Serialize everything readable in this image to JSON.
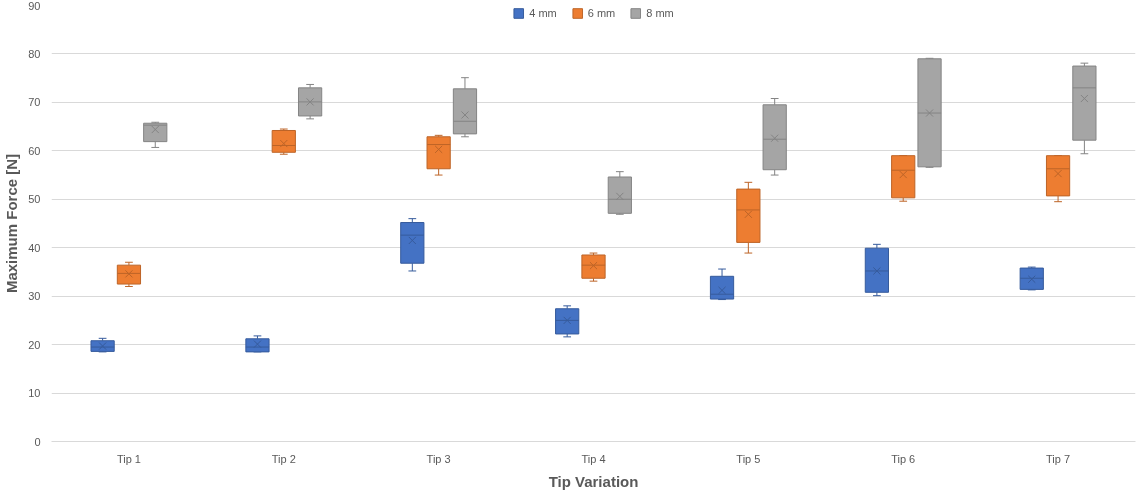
{
  "chart_data": {
    "type": "box",
    "xlabel": "Tip Variation",
    "ylabel": "Maximum Force [N]",
    "categories": [
      "Tip 1",
      "Tip 2",
      "Tip 3",
      "Tip 4",
      "Tip 5",
      "Tip 6",
      "Tip 7"
    ],
    "ylim": [
      0,
      90
    ],
    "yticks": [
      0,
      10,
      20,
      30,
      40,
      50,
      60,
      70,
      80,
      90
    ],
    "grid": "y",
    "legend": "top",
    "series": [
      {
        "name": "4 mm",
        "color": "#4472c4",
        "boxes": [
          {
            "low": 18.5,
            "q1": 18.6,
            "median": 19.5,
            "q3": 20.8,
            "high": 21.3,
            "mean": 19.7
          },
          {
            "low": 18.5,
            "q1": 18.5,
            "median": 19.5,
            "q3": 21.2,
            "high": 21.8,
            "mean": 20.1
          },
          {
            "low": 35.2,
            "q1": 36.8,
            "median": 42.6,
            "q3": 45.2,
            "high": 46.0,
            "mean": 41.5
          },
          {
            "low": 21.6,
            "q1": 22.2,
            "median": 25.0,
            "q3": 27.4,
            "high": 28.0,
            "mean": 25.0
          },
          {
            "low": 29.3,
            "q1": 29.4,
            "median": 30.4,
            "q3": 34.1,
            "high": 35.6,
            "mean": 31.2
          },
          {
            "low": 30.1,
            "q1": 30.8,
            "median": 35.2,
            "q3": 39.9,
            "high": 40.7,
            "mean": 35.2
          },
          {
            "low": 31.3,
            "q1": 31.4,
            "median": 33.7,
            "q3": 35.8,
            "high": 36.0,
            "mean": 33.5
          }
        ]
      },
      {
        "name": "6 mm",
        "color": "#ed7d31",
        "boxes": [
          {
            "low": 32.0,
            "q1": 32.5,
            "median": 34.7,
            "q3": 36.4,
            "high": 37.0,
            "mean": 34.6
          },
          {
            "low": 59.3,
            "q1": 59.7,
            "median": 61.1,
            "q3": 64.2,
            "high": 64.5,
            "mean": 61.5
          },
          {
            "low": 55.0,
            "q1": 56.3,
            "median": 61.3,
            "q3": 62.9,
            "high": 63.2,
            "mean": 60.3
          },
          {
            "low": 33.1,
            "q1": 33.7,
            "median": 36.4,
            "q3": 38.5,
            "high": 38.9,
            "mean": 36.3
          },
          {
            "low": 38.9,
            "q1": 41.1,
            "median": 47.8,
            "q3": 52.1,
            "high": 53.5,
            "mean": 46.9
          },
          {
            "low": 49.6,
            "q1": 50.3,
            "median": 56.0,
            "q3": 59.0,
            "high": 59.0,
            "mean": 55.1
          },
          {
            "low": 49.5,
            "q1": 50.7,
            "median": 56.3,
            "q3": 59.0,
            "high": 59.0,
            "mean": 55.3
          }
        ]
      },
      {
        "name": "8 mm",
        "color": "#a5a5a5",
        "boxes": [
          {
            "low": 60.7,
            "q1": 61.9,
            "median": 65.3,
            "q3": 65.7,
            "high": 65.9,
            "mean": 64.4
          },
          {
            "low": 66.6,
            "q1": 67.2,
            "median": 70.1,
            "q3": 73.0,
            "high": 73.7,
            "mean": 70.1
          },
          {
            "low": 62.9,
            "q1": 63.5,
            "median": 66.1,
            "q3": 72.8,
            "high": 75.1,
            "mean": 67.4
          },
          {
            "low": 46.9,
            "q1": 47.1,
            "median": 50.0,
            "q3": 54.6,
            "high": 55.7,
            "mean": 50.6
          },
          {
            "low": 55.0,
            "q1": 56.1,
            "median": 62.4,
            "q3": 69.5,
            "high": 70.8,
            "mean": 62.6
          },
          {
            "low": 56.6,
            "q1": 56.7,
            "median": 67.8,
            "q3": 79.0,
            "high": 79.1,
            "mean": 67.8
          },
          {
            "low": 59.4,
            "q1": 62.2,
            "median": 73.0,
            "q3": 77.5,
            "high": 78.1,
            "mean": 70.8
          }
        ]
      }
    ]
  }
}
